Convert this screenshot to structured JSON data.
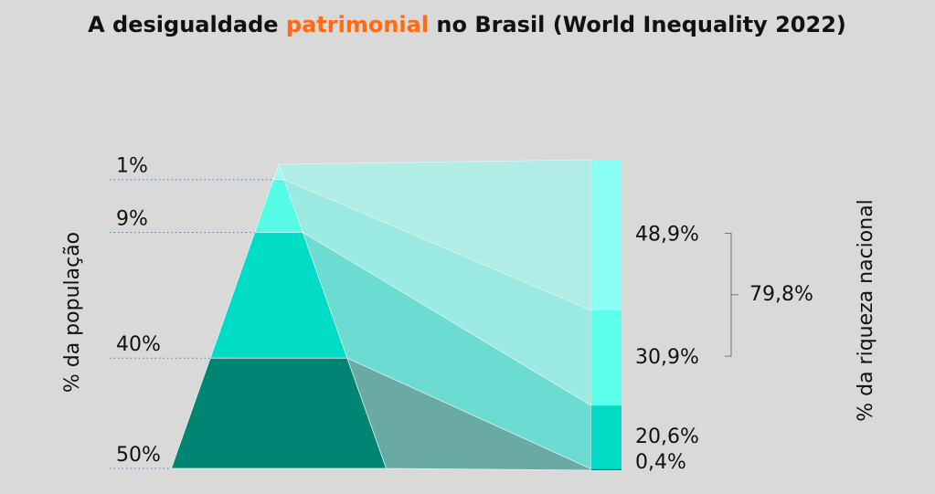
{
  "chart_data": {
    "type": "pyramid",
    "title_parts": [
      "A desigualdade ",
      "patrimonial",
      " no Brasil (World Inequality 2022)"
    ],
    "title_highlight": 1,
    "title_highlight_color": "#ff6a13",
    "y_label": "% da população",
    "y2_label": "% da riqueza nacional",
    "population": {
      "values": [
        1,
        9,
        40,
        50
      ],
      "value_labels": [
        "1%",
        "9%",
        "40%",
        "50%"
      ],
      "colors": [
        "#9ffbf2",
        "#55fde6",
        "#00dcc6",
        "#008573"
      ]
    },
    "wealth": {
      "values": [
        48.9,
        30.9,
        20.6,
        0.4
      ],
      "value_labels": [
        "48,9%",
        "30,9%",
        "20,6%",
        "0,4%"
      ],
      "colors": [
        "#8afff6",
        "#5cffe9",
        "#00dcc6",
        "#008573"
      ],
      "link_colors": [
        "#b2ece7",
        "#9aeae1",
        "#6cdbd0",
        "#6aaaa4"
      ]
    },
    "bracket": {
      "value": 79.8,
      "label": "79,8%"
    }
  }
}
